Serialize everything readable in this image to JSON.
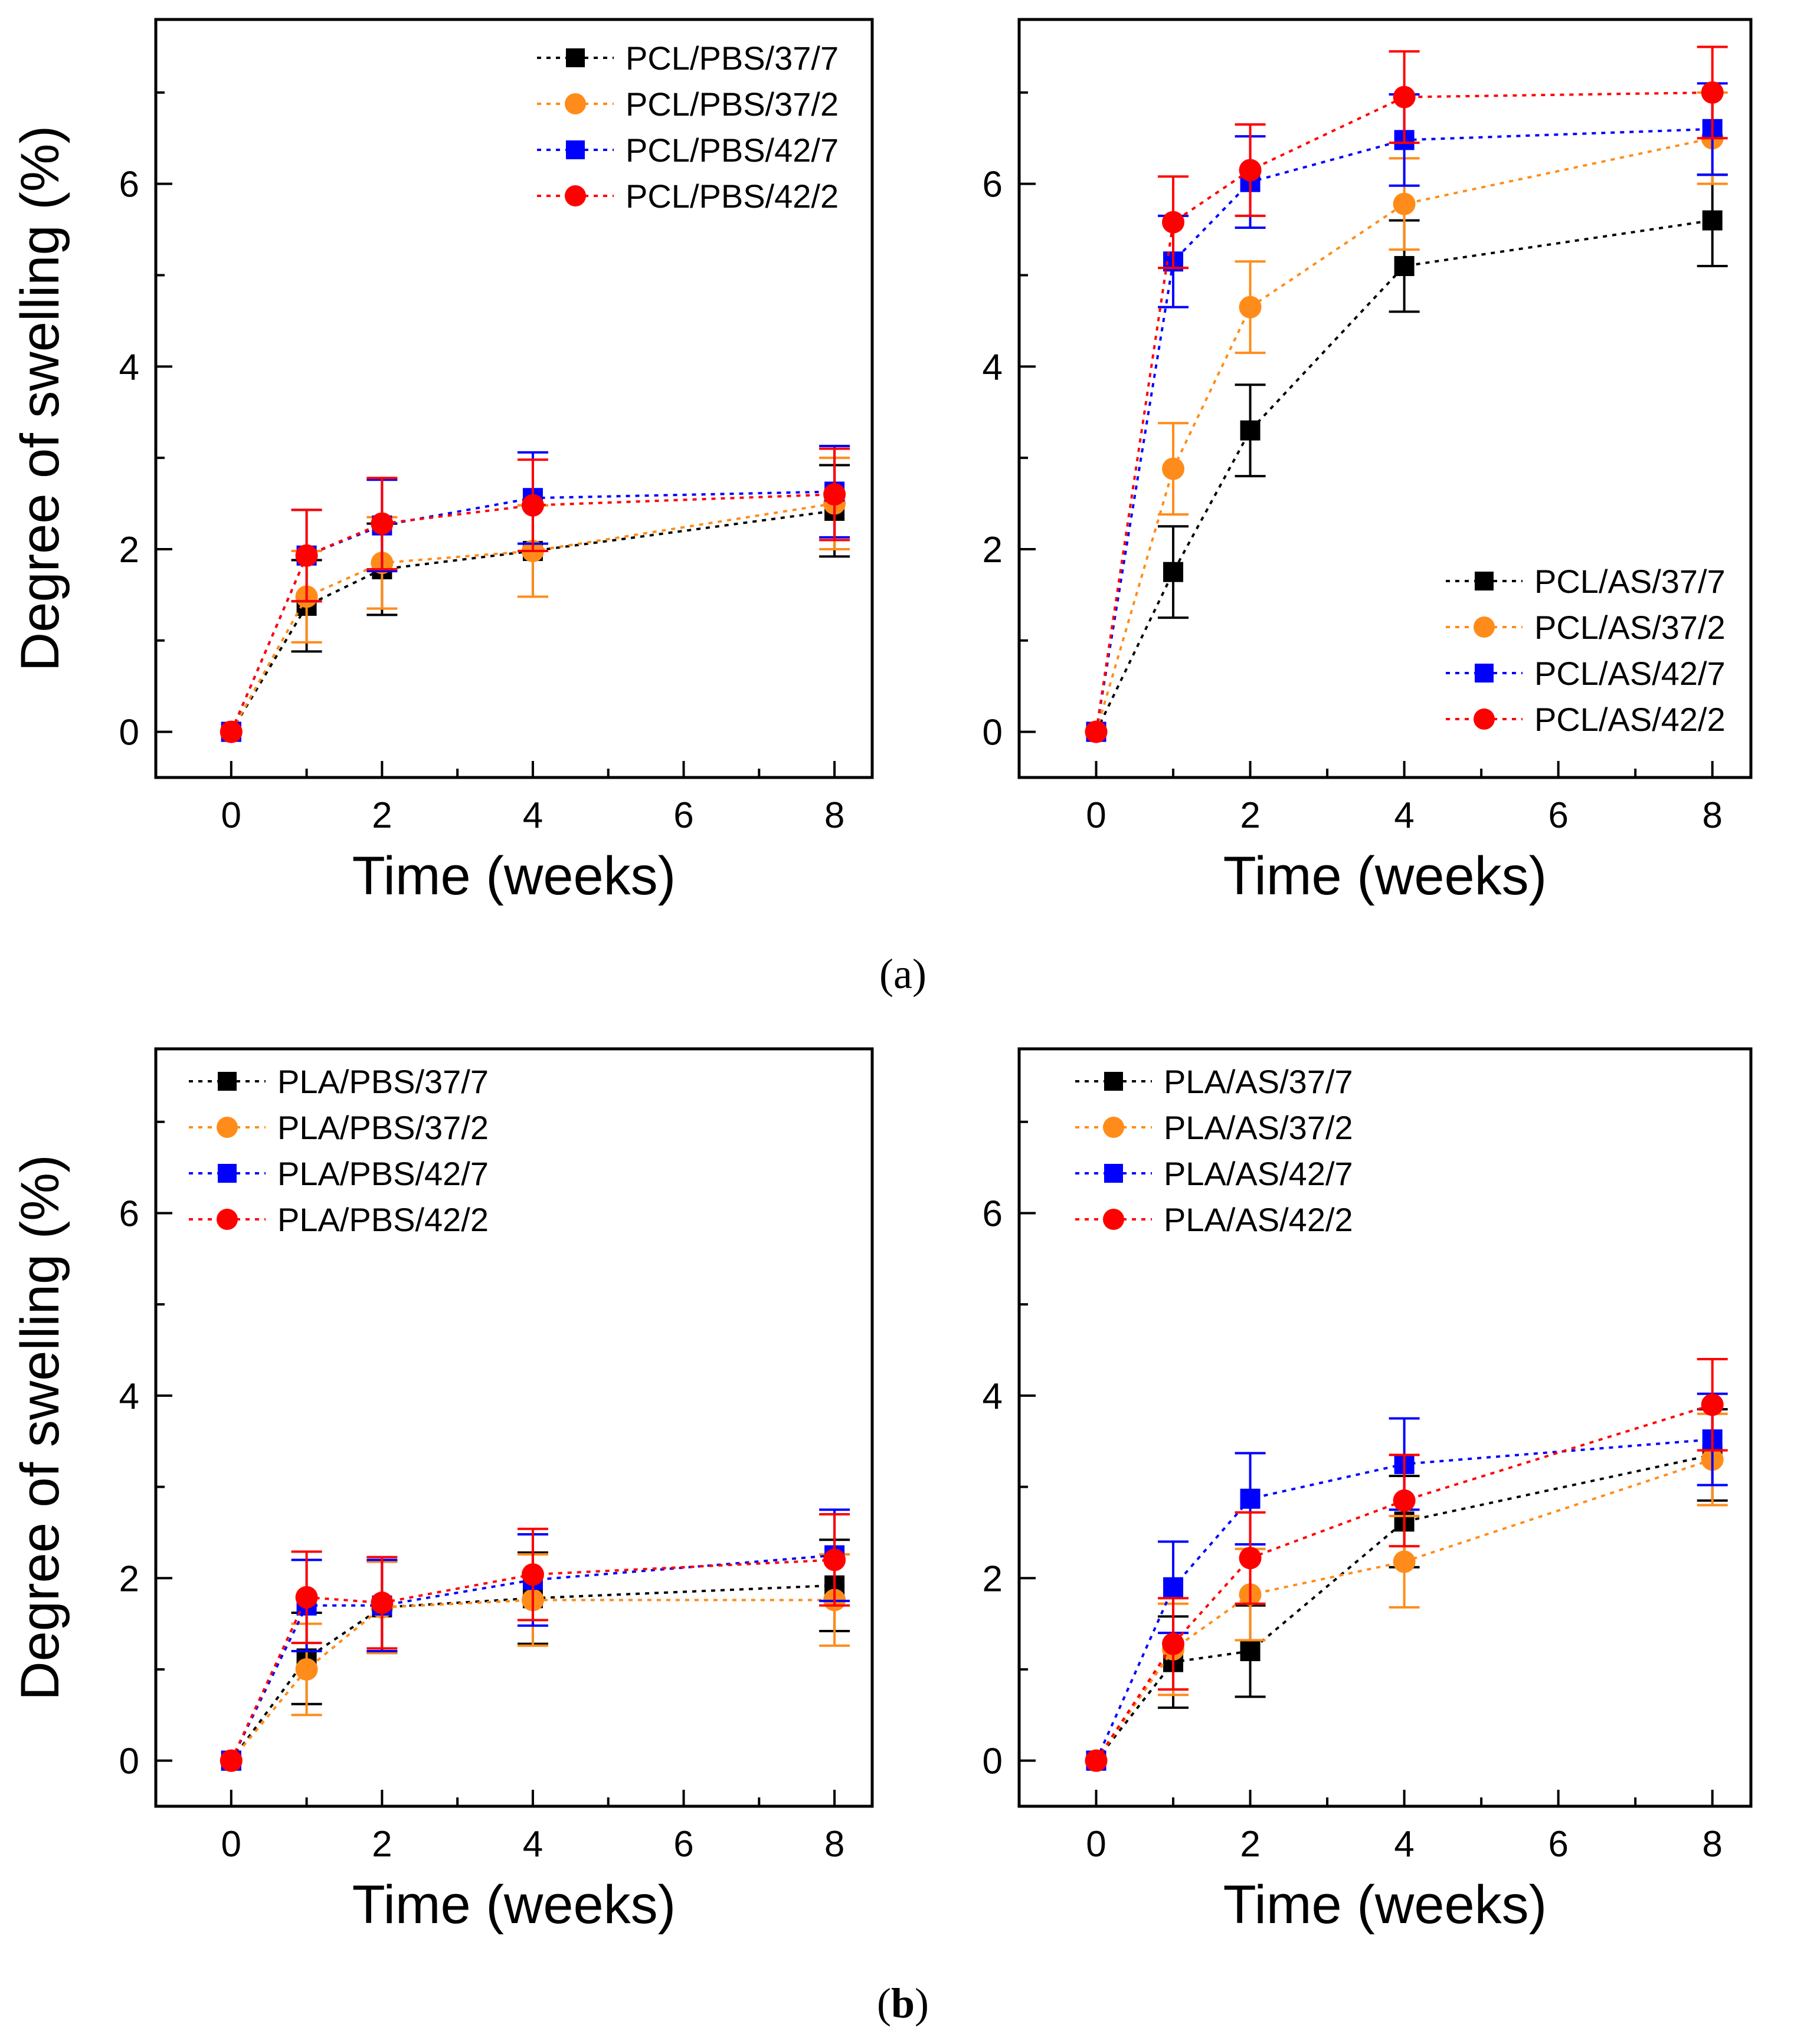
{
  "figure": {
    "panels": [
      {
        "open": "(",
        "letter": "a",
        "close": ")"
      },
      {
        "open": "(",
        "letter": "b",
        "close": ")"
      }
    ]
  },
  "styles": {
    "black": {
      "color": "#000000",
      "marker": "square"
    },
    "orange": {
      "color": "#FF8C1A",
      "marker": "circle"
    },
    "blue": {
      "color": "#0000FF",
      "marker": "square"
    },
    "red": {
      "color": "#FF0000",
      "marker": "circle"
    }
  },
  "chart_data": [
    {
      "type": "line",
      "title": "",
      "xlabel": "Time (weeks)",
      "ylabel": "Degree of swelling (%)",
      "xlim": [
        -1,
        8.5
      ],
      "ylim": [
        -0.5,
        7.8
      ],
      "xticks": [
        "0",
        "2",
        "4",
        "6",
        "8"
      ],
      "yticks": [
        "0",
        "2",
        "4",
        "6"
      ],
      "legend_position": "top-right",
      "x": [
        0,
        1,
        2,
        4,
        8
      ],
      "series": [
        {
          "name": "PCL/PBS/37/7",
          "style": "black",
          "values": [
            0,
            1.38,
            1.78,
            1.98,
            2.42
          ],
          "errors": [
            0,
            0.5,
            0.5,
            0.5,
            0.5
          ]
        },
        {
          "name": "PCL/PBS/37/2",
          "style": "orange",
          "values": [
            0,
            1.48,
            1.85,
            1.98,
            2.5
          ],
          "errors": [
            0,
            0.5,
            0.5,
            0.5,
            0.5
          ]
        },
        {
          "name": "PCL/PBS/42/7",
          "style": "blue",
          "values": [
            0,
            1.93,
            2.26,
            2.56,
            2.63
          ],
          "errors": [
            0,
            0.5,
            0.5,
            0.5,
            0.5
          ]
        },
        {
          "name": "PCL/PBS/42/2",
          "style": "red",
          "values": [
            0,
            1.93,
            2.28,
            2.48,
            2.6
          ],
          "errors": [
            0,
            0.5,
            0.5,
            0.5,
            0.5
          ]
        }
      ]
    },
    {
      "type": "line",
      "title": "",
      "xlabel": "Time (weeks)",
      "ylabel": "",
      "xlim": [
        -1,
        8.5
      ],
      "ylim": [
        -0.5,
        7.8
      ],
      "xticks": [
        "0",
        "2",
        "4",
        "6",
        "8"
      ],
      "yticks": [
        "0",
        "2",
        "4",
        "6"
      ],
      "legend_position": "bottom-right",
      "x": [
        0,
        1,
        2,
        4,
        8
      ],
      "series": [
        {
          "name": "PCL/AS/37/7",
          "style": "black",
          "values": [
            0,
            1.75,
            3.3,
            5.1,
            5.6
          ],
          "errors": [
            0,
            0.5,
            0.5,
            0.5,
            0.5
          ]
        },
        {
          "name": "PCL/AS/37/2",
          "style": "orange",
          "values": [
            0,
            2.88,
            4.65,
            5.78,
            6.5
          ],
          "errors": [
            0,
            0.5,
            0.5,
            0.5,
            0.5
          ]
        },
        {
          "name": "PCL/AS/42/7",
          "style": "blue",
          "values": [
            0,
            5.15,
            6.02,
            6.48,
            6.6
          ],
          "errors": [
            0,
            0.5,
            0.5,
            0.5,
            0.5
          ]
        },
        {
          "name": "PCL/AS/42/2",
          "style": "red",
          "values": [
            0,
            5.58,
            6.15,
            6.95,
            7.0
          ],
          "errors": [
            0,
            0.5,
            0.5,
            0.5,
            0.5
          ]
        }
      ]
    },
    {
      "type": "line",
      "title": "",
      "xlabel": "Time (weeks)",
      "ylabel": "Degree of swelling (%)",
      "xlim": [
        -1,
        8.5
      ],
      "ylim": [
        -0.5,
        7.8
      ],
      "xticks": [
        "0",
        "2",
        "4",
        "6",
        "8"
      ],
      "yticks": [
        "0",
        "2",
        "4",
        "6"
      ],
      "legend_position": "top-left",
      "x": [
        0,
        1,
        2,
        4,
        8
      ],
      "series": [
        {
          "name": "PLA/PBS/37/7",
          "style": "black",
          "values": [
            0,
            1.12,
            1.68,
            1.78,
            1.92
          ],
          "errors": [
            0,
            0.5,
            0.5,
            0.5,
            0.5
          ]
        },
        {
          "name": "PLA/PBS/37/2",
          "style": "orange",
          "values": [
            0,
            1.0,
            1.68,
            1.76,
            1.76
          ],
          "errors": [
            0,
            0.5,
            0.5,
            0.5,
            0.5
          ]
        },
        {
          "name": "PLA/PBS/42/7",
          "style": "blue",
          "values": [
            0,
            1.7,
            1.7,
            1.98,
            2.25
          ],
          "errors": [
            0,
            0.5,
            0.5,
            0.5,
            0.5
          ]
        },
        {
          "name": "PLA/PBS/42/2",
          "style": "red",
          "values": [
            0,
            1.79,
            1.73,
            2.04,
            2.2
          ],
          "errors": [
            0,
            0.5,
            0.5,
            0.5,
            0.5
          ]
        }
      ]
    },
    {
      "type": "line",
      "title": "",
      "xlabel": "Time (weeks)",
      "ylabel": "",
      "xlim": [
        -1,
        8.5
      ],
      "ylim": [
        -0.5,
        7.8
      ],
      "xticks": [
        "0",
        "2",
        "4",
        "6",
        "8"
      ],
      "yticks": [
        "0",
        "2",
        "4",
        "6"
      ],
      "legend_position": "top-left",
      "x": [
        0,
        1,
        2,
        4,
        8
      ],
      "series": [
        {
          "name": "PLA/AS/37/7",
          "style": "black",
          "values": [
            0,
            1.08,
            1.2,
            2.62,
            3.35
          ],
          "errors": [
            0,
            0.5,
            0.5,
            0.5,
            0.5
          ]
        },
        {
          "name": "PLA/AS/37/2",
          "style": "orange",
          "values": [
            0,
            1.22,
            1.82,
            2.18,
            3.3
          ],
          "errors": [
            0,
            0.5,
            0.5,
            0.5,
            0.5
          ]
        },
        {
          "name": "PLA/AS/42/7",
          "style": "blue",
          "values": [
            0,
            1.9,
            2.87,
            3.25,
            3.52
          ],
          "errors": [
            0,
            0.5,
            0.5,
            0.5,
            0.5
          ]
        },
        {
          "name": "PLA/AS/42/2",
          "style": "red",
          "values": [
            0,
            1.28,
            2.22,
            2.85,
            3.9
          ],
          "errors": [
            0,
            0.5,
            0.5,
            0.5,
            0.5
          ]
        }
      ]
    }
  ]
}
